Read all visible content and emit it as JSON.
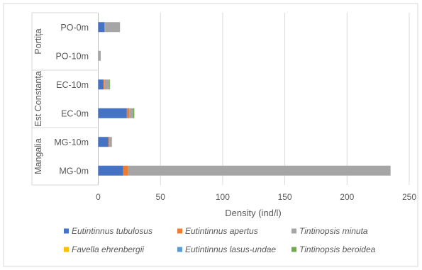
{
  "chart_data": {
    "type": "bar",
    "orientation": "horizontal",
    "stacked": true,
    "xlabel": "Density (ind/l)",
    "xlim": [
      0,
      250
    ],
    "xticks": [
      0,
      50,
      100,
      150,
      200,
      250
    ],
    "grid": true,
    "legend_position": "bottom",
    "groups": [
      {
        "name": "Portița",
        "categories": [
          "PO-0m",
          "PO-10m"
        ]
      },
      {
        "name": "Est Constanța",
        "categories": [
          "EC-10m",
          "EC-0m"
        ]
      },
      {
        "name": "Mangalia",
        "categories": [
          "MG-10m",
          "MG-0m"
        ]
      }
    ],
    "categories": [
      "PO-0m",
      "PO-10m",
      "EC-10m",
      "EC-0m",
      "MG-10m",
      "MG-0m"
    ],
    "series": [
      {
        "name": "Eutintinnus tubulosus",
        "color": "#4472C4",
        "values": [
          5,
          0,
          4,
          23,
          8,
          20
        ]
      },
      {
        "name": "Eutintinnus apertus",
        "color": "#ED7D31",
        "values": [
          0.5,
          0,
          1,
          2,
          1,
          4
        ]
      },
      {
        "name": "Tintinopsis minuta",
        "color": "#A5A5A5",
        "values": [
          12,
          2,
          4,
          3,
          2,
          211
        ]
      },
      {
        "name": "Favella ehrenbergii",
        "color": "#FFC000",
        "values": [
          0,
          0,
          0,
          0,
          0,
          0
        ]
      },
      {
        "name": "Eutintinnus  lasus-undae",
        "color": "#5B9BD5",
        "values": [
          0,
          0,
          0,
          0,
          0,
          0
        ]
      },
      {
        "name": "Tintinopsis beroidea",
        "color": "#70AD47",
        "values": [
          0,
          0,
          0.5,
          1,
          0,
          0
        ]
      }
    ]
  }
}
